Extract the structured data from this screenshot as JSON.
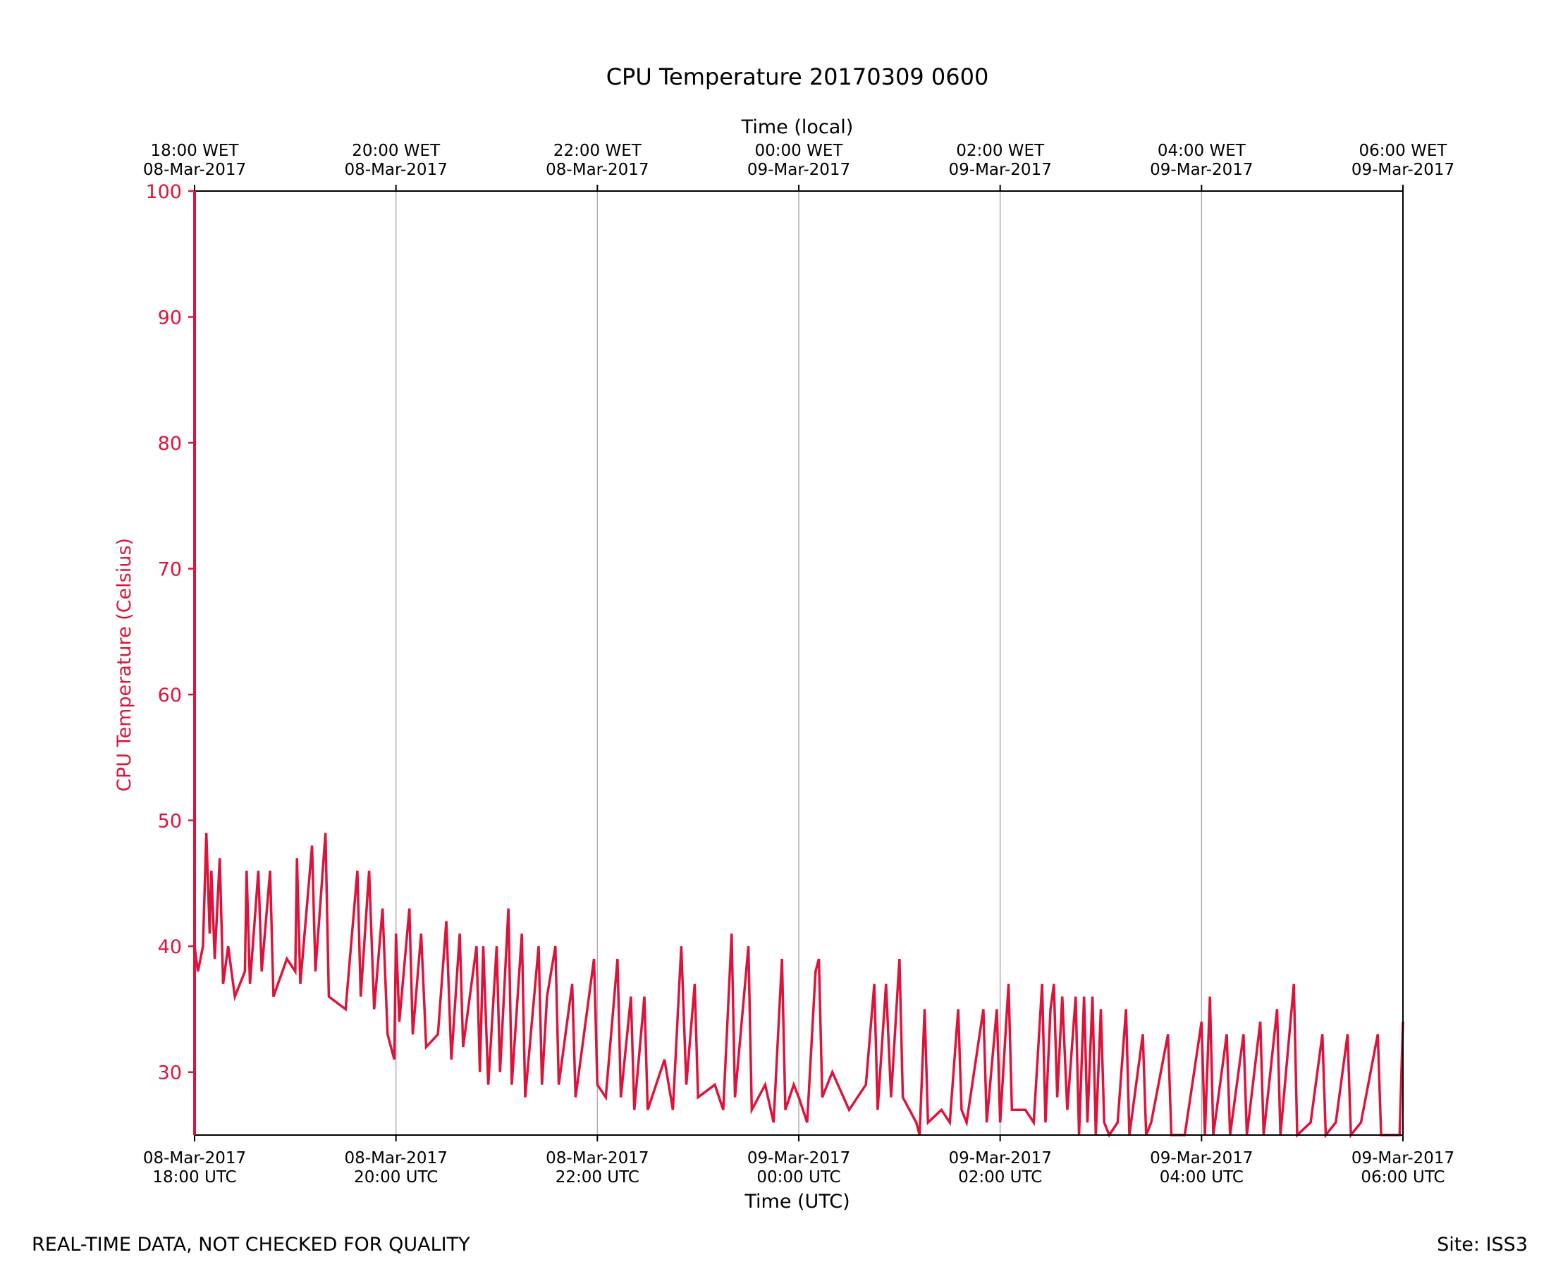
{
  "chart_data": {
    "type": "line",
    "title": "CPU Temperature 20170309 0600",
    "xlabel": "Time (UTC)",
    "x2label": "Time (local)",
    "ylabel": "CPU Temperature (Celsius)",
    "xlim": [
      "2017-03-08 18:00",
      "2017-03-09 06:00"
    ],
    "ylim": [
      25,
      100
    ],
    "ytick_values": [
      30,
      40,
      50,
      60,
      70,
      80,
      90,
      100
    ],
    "grid": "vertical at x ticks",
    "xticks_bottom": [
      {
        "line1": "08-Mar-2017",
        "line2": "18:00 UTC"
      },
      {
        "line1": "08-Mar-2017",
        "line2": "20:00 UTC"
      },
      {
        "line1": "08-Mar-2017",
        "line2": "22:00 UTC"
      },
      {
        "line1": "09-Mar-2017",
        "line2": "00:00 UTC"
      },
      {
        "line1": "09-Mar-2017",
        "line2": "02:00 UTC"
      },
      {
        "line1": "09-Mar-2017",
        "line2": "04:00 UTC"
      },
      {
        "line1": "09-Mar-2017",
        "line2": "06:00 UTC"
      }
    ],
    "xticks_top": [
      {
        "line1": "18:00 WET",
        "line2": "08-Mar-2017"
      },
      {
        "line1": "20:00 WET",
        "line2": "08-Mar-2017"
      },
      {
        "line1": "22:00 WET",
        "line2": "08-Mar-2017"
      },
      {
        "line1": "00:00 WET",
        "line2": "09-Mar-2017"
      },
      {
        "line1": "02:00 WET",
        "line2": "09-Mar-2017"
      },
      {
        "line1": "04:00 WET",
        "line2": "09-Mar-2017"
      },
      {
        "line1": "06:00 WET",
        "line2": "09-Mar-2017"
      }
    ],
    "series": [
      {
        "color": "#dc143c",
        "points": [
          [
            "2017-03-08 18:00",
            100
          ],
          [
            "2017-03-08 18:00",
            40
          ],
          [
            "2017-03-08 18:02",
            38
          ],
          [
            "2017-03-08 18:05",
            40
          ],
          [
            "2017-03-08 18:07",
            49
          ],
          [
            "2017-03-08 18:09",
            41
          ],
          [
            "2017-03-08 18:10",
            46
          ],
          [
            "2017-03-08 18:12",
            39
          ],
          [
            "2017-03-08 18:15",
            47
          ],
          [
            "2017-03-08 18:17",
            37
          ],
          [
            "2017-03-08 18:20",
            40
          ],
          [
            "2017-03-08 18:24",
            36
          ],
          [
            "2017-03-08 18:30",
            38
          ],
          [
            "2017-03-08 18:31",
            46
          ],
          [
            "2017-03-08 18:33",
            37
          ],
          [
            "2017-03-08 18:38",
            46
          ],
          [
            "2017-03-08 18:40",
            38
          ],
          [
            "2017-03-08 18:45",
            46
          ],
          [
            "2017-03-08 18:47",
            36
          ],
          [
            "2017-03-08 18:55",
            39
          ],
          [
            "2017-03-08 19:00",
            38
          ],
          [
            "2017-03-08 19:01",
            47
          ],
          [
            "2017-03-08 19:03",
            37
          ],
          [
            "2017-03-08 19:10",
            48
          ],
          [
            "2017-03-08 19:12",
            38
          ],
          [
            "2017-03-08 19:18",
            49
          ],
          [
            "2017-03-08 19:20",
            36
          ],
          [
            "2017-03-08 19:30",
            35
          ],
          [
            "2017-03-08 19:37",
            46
          ],
          [
            "2017-03-08 19:39",
            36
          ],
          [
            "2017-03-08 19:44",
            46
          ],
          [
            "2017-03-08 19:47",
            35
          ],
          [
            "2017-03-08 19:52",
            43
          ],
          [
            "2017-03-08 19:55",
            33
          ],
          [
            "2017-03-08 19:59",
            31
          ],
          [
            "2017-03-08 20:00",
            41
          ],
          [
            "2017-03-08 20:02",
            34
          ],
          [
            "2017-03-08 20:08",
            43
          ],
          [
            "2017-03-08 20:10",
            33
          ],
          [
            "2017-03-08 20:15",
            41
          ],
          [
            "2017-03-08 20:18",
            32
          ],
          [
            "2017-03-08 20:25",
            33
          ],
          [
            "2017-03-08 20:30",
            42
          ],
          [
            "2017-03-08 20:33",
            31
          ],
          [
            "2017-03-08 20:38",
            41
          ],
          [
            "2017-03-08 20:40",
            32
          ],
          [
            "2017-03-08 20:48",
            40
          ],
          [
            "2017-03-08 20:50",
            30
          ],
          [
            "2017-03-08 20:52",
            40
          ],
          [
            "2017-03-08 20:55",
            29
          ],
          [
            "2017-03-08 21:00",
            40
          ],
          [
            "2017-03-08 21:02",
            30
          ],
          [
            "2017-03-08 21:07",
            43
          ],
          [
            "2017-03-08 21:09",
            29
          ],
          [
            "2017-03-08 21:15",
            41
          ],
          [
            "2017-03-08 21:17",
            28
          ],
          [
            "2017-03-08 21:25",
            40
          ],
          [
            "2017-03-08 21:27",
            29
          ],
          [
            "2017-03-08 21:30",
            36
          ],
          [
            "2017-03-08 21:35",
            40
          ],
          [
            "2017-03-08 21:37",
            29
          ],
          [
            "2017-03-08 21:45",
            37
          ],
          [
            "2017-03-08 21:47",
            28
          ],
          [
            "2017-03-08 21:55",
            36
          ],
          [
            "2017-03-08 21:58",
            39
          ],
          [
            "2017-03-08 22:00",
            29
          ],
          [
            "2017-03-08 22:05",
            28
          ],
          [
            "2017-03-08 22:12",
            39
          ],
          [
            "2017-03-08 22:14",
            28
          ],
          [
            "2017-03-08 22:20",
            36
          ],
          [
            "2017-03-08 22:22",
            27
          ],
          [
            "2017-03-08 22:28",
            36
          ],
          [
            "2017-03-08 22:30",
            27
          ],
          [
            "2017-03-08 22:40",
            31
          ],
          [
            "2017-03-08 22:45",
            27
          ],
          [
            "2017-03-08 22:50",
            40
          ],
          [
            "2017-03-08 22:53",
            29
          ],
          [
            "2017-03-08 22:58",
            37
          ],
          [
            "2017-03-08 23:00",
            28
          ],
          [
            "2017-03-08 23:10",
            29
          ],
          [
            "2017-03-08 23:15",
            27
          ],
          [
            "2017-03-08 23:20",
            41
          ],
          [
            "2017-03-08 23:22",
            28
          ],
          [
            "2017-03-08 23:30",
            40
          ],
          [
            "2017-03-08 23:32",
            27
          ],
          [
            "2017-03-08 23:40",
            29
          ],
          [
            "2017-03-08 23:45",
            26
          ],
          [
            "2017-03-08 23:50",
            39
          ],
          [
            "2017-03-08 23:52",
            27
          ],
          [
            "2017-03-08 23:57",
            29
          ],
          [
            "2017-03-09 00:00",
            28
          ],
          [
            "2017-03-09 00:05",
            26
          ],
          [
            "2017-03-09 00:10",
            38
          ],
          [
            "2017-03-09 00:12",
            39
          ],
          [
            "2017-03-09 00:14",
            28
          ],
          [
            "2017-03-09 00:20",
            30
          ],
          [
            "2017-03-09 00:30",
            27
          ],
          [
            "2017-03-09 00:40",
            29
          ],
          [
            "2017-03-09 00:45",
            37
          ],
          [
            "2017-03-09 00:47",
            27
          ],
          [
            "2017-03-09 00:52",
            37
          ],
          [
            "2017-03-09 00:55",
            28
          ],
          [
            "2017-03-09 01:00",
            39
          ],
          [
            "2017-03-09 01:02",
            28
          ],
          [
            "2017-03-09 01:10",
            26
          ],
          [
            "2017-03-09 01:12",
            25
          ],
          [
            "2017-03-09 01:15",
            35
          ],
          [
            "2017-03-09 01:17",
            26
          ],
          [
            "2017-03-09 01:25",
            27
          ],
          [
            "2017-03-09 01:30",
            26
          ],
          [
            "2017-03-09 01:35",
            35
          ],
          [
            "2017-03-09 01:37",
            27
          ],
          [
            "2017-03-09 01:40",
            26
          ],
          [
            "2017-03-09 01:50",
            35
          ],
          [
            "2017-03-09 01:52",
            26
          ],
          [
            "2017-03-09 01:58",
            35
          ],
          [
            "2017-03-09 02:00",
            26
          ],
          [
            "2017-03-09 02:05",
            37
          ],
          [
            "2017-03-09 02:07",
            27
          ],
          [
            "2017-03-09 02:15",
            27
          ],
          [
            "2017-03-09 02:20",
            26
          ],
          [
            "2017-03-09 02:25",
            37
          ],
          [
            "2017-03-09 02:27",
            26
          ],
          [
            "2017-03-09 02:30",
            35
          ],
          [
            "2017-03-09 02:32",
            37
          ],
          [
            "2017-03-09 02:34",
            28
          ],
          [
            "2017-03-09 02:37",
            36
          ],
          [
            "2017-03-09 02:40",
            27
          ],
          [
            "2017-03-09 02:45",
            36
          ],
          [
            "2017-03-09 02:47",
            25
          ],
          [
            "2017-03-09 02:50",
            36
          ],
          [
            "2017-03-09 02:52",
            26
          ],
          [
            "2017-03-09 02:55",
            36
          ],
          [
            "2017-03-09 02:57",
            25
          ],
          [
            "2017-03-09 03:00",
            35
          ],
          [
            "2017-03-09 03:02",
            26
          ],
          [
            "2017-03-09 03:05",
            25
          ],
          [
            "2017-03-09 03:10",
            26
          ],
          [
            "2017-03-09 03:15",
            35
          ],
          [
            "2017-03-09 03:17",
            25
          ],
          [
            "2017-03-09 03:25",
            33
          ],
          [
            "2017-03-09 03:27",
            25
          ],
          [
            "2017-03-09 03:30",
            26
          ],
          [
            "2017-03-09 03:40",
            33
          ],
          [
            "2017-03-09 03:42",
            25
          ],
          [
            "2017-03-09 03:50",
            25
          ],
          [
            "2017-03-09 04:00",
            34
          ],
          [
            "2017-03-09 04:02",
            25
          ],
          [
            "2017-03-09 04:05",
            36
          ],
          [
            "2017-03-09 04:07",
            25
          ],
          [
            "2017-03-09 04:15",
            33
          ],
          [
            "2017-03-09 04:17",
            25
          ],
          [
            "2017-03-09 04:25",
            33
          ],
          [
            "2017-03-09 04:27",
            25
          ],
          [
            "2017-03-09 04:35",
            34
          ],
          [
            "2017-03-09 04:37",
            25
          ],
          [
            "2017-03-09 04:45",
            35
          ],
          [
            "2017-03-09 04:47",
            25
          ],
          [
            "2017-03-09 04:55",
            37
          ],
          [
            "2017-03-09 04:57",
            25
          ],
          [
            "2017-03-09 05:05",
            26
          ],
          [
            "2017-03-09 05:12",
            33
          ],
          [
            "2017-03-09 05:14",
            25
          ],
          [
            "2017-03-09 05:20",
            26
          ],
          [
            "2017-03-09 05:27",
            33
          ],
          [
            "2017-03-09 05:29",
            25
          ],
          [
            "2017-03-09 05:35",
            26
          ],
          [
            "2017-03-09 05:45",
            33
          ],
          [
            "2017-03-09 05:47",
            25
          ],
          [
            "2017-03-09 05:58",
            25
          ],
          [
            "2017-03-09 06:00",
            34
          ]
        ]
      }
    ]
  },
  "footer": {
    "left": "REAL-TIME DATA, NOT CHECKED FOR QUALITY",
    "right": "Site: ISS3"
  },
  "colors": {
    "series": "#dc143c",
    "axis": "#000000",
    "grid": "#b0b0b0"
  }
}
